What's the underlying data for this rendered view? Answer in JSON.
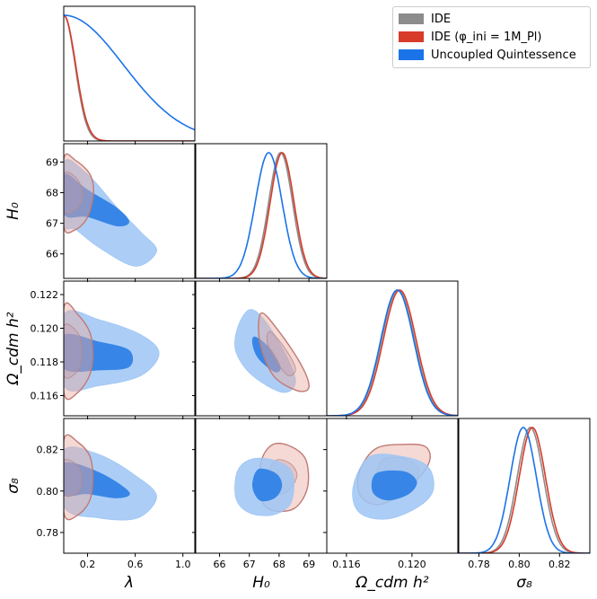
{
  "colors": {
    "ide": "#8c8c8c",
    "ide_phi": "#d93b2b",
    "uncoupled": "#1a73e8",
    "uncoupled_light": "#9ec5f5",
    "uncoupled_dark": "#2a7ee6",
    "ide_light": "#e8aaa0"
  },
  "legend": {
    "items": [
      {
        "label": "IDE",
        "color_key": "ide"
      },
      {
        "label": "IDE (φ_ini = 1M_Pl)",
        "color_key": "ide_phi"
      },
      {
        "label": "Uncoupled Quintessence",
        "color_key": "uncoupled"
      }
    ]
  },
  "chart_data": {
    "type": "corner",
    "parameters": [
      {
        "name": "lambda",
        "label": "λ",
        "range": [
          0,
          1.1
        ],
        "ticks": [
          0.2,
          0.6,
          1.0
        ],
        "tick_labels": [
          "0.2",
          "0.6",
          "1.0"
        ]
      },
      {
        "name": "H0",
        "label": "H₀",
        "range": [
          65.2,
          69.6
        ],
        "ticks": [
          66,
          67,
          68,
          69
        ],
        "tick_labels": [
          "66",
          "67",
          "68",
          "69"
        ]
      },
      {
        "name": "omega_cdm_h2",
        "label": "Ω_cdm h²",
        "range": [
          0.1148,
          0.1228
        ],
        "ticks": [
          0.116,
          0.118,
          0.12,
          0.122
        ],
        "tick_labels": [
          "0.116",
          "0.118",
          "0.120",
          "0.122"
        ],
        "x_tick_labels": [
          "0.116",
          "0.120"
        ],
        "x_ticks": [
          0.116,
          0.12
        ]
      },
      {
        "name": "sigma8",
        "label": "σ₈",
        "range": [
          0.77,
          0.835
        ],
        "ticks": [
          0.78,
          0.8,
          0.82
        ],
        "tick_labels": [
          "0.78",
          "0.80",
          "0.82"
        ]
      }
    ],
    "marginals": {
      "lambda": {
        "ide": {
          "type": "halfgauss",
          "sigma": 0.095
        },
        "ide_phi": {
          "type": "halfgauss",
          "sigma": 0.1
        },
        "uncoupled": {
          "type": "halfgauss",
          "sigma": 0.5
        }
      },
      "H0": {
        "ide": {
          "mean": 68.05,
          "sigma": 0.4
        },
        "ide_phi": {
          "mean": 68.1,
          "sigma": 0.4
        },
        "uncoupled": {
          "mean": 67.65,
          "sigma": 0.45
        }
      },
      "omega_cdm_h2": {
        "ide": {
          "mean": 0.11915,
          "sigma": 0.001
        },
        "ide_phi": {
          "mean": 0.11925,
          "sigma": 0.001
        },
        "uncoupled": {
          "mean": 0.1191,
          "sigma": 0.001
        }
      },
      "sigma8": {
        "ide": {
          "mean": 0.8055,
          "sigma": 0.0065
        },
        "ide_phi": {
          "mean": 0.8065,
          "sigma": 0.0065
        },
        "uncoupled": {
          "mean": 0.802,
          "sigma": 0.0065
        }
      }
    },
    "contours": [
      {
        "row": 1,
        "col": 0,
        "series": "uncoupled",
        "outer": [
          [
            0,
            69
          ],
          [
            0.2,
            68.6
          ],
          [
            0.45,
            67.5
          ],
          [
            0.65,
            66.7
          ],
          [
            0.78,
            66.1
          ],
          [
            0.6,
            65.6
          ],
          [
            0.3,
            66.2
          ],
          [
            0.1,
            66.8
          ],
          [
            0,
            67
          ]
        ],
        "inner": [
          [
            0,
            68.6
          ],
          [
            0.2,
            68.1
          ],
          [
            0.45,
            67.5
          ],
          [
            0.55,
            67.05
          ],
          [
            0.45,
            66.9
          ],
          [
            0.2,
            67.2
          ],
          [
            0,
            67.3
          ]
        ]
      },
      {
        "row": 1,
        "col": 0,
        "series": "ide",
        "outer": [
          [
            0,
            69.1
          ],
          [
            0.1,
            69.05
          ],
          [
            0.22,
            68.6
          ],
          [
            0.25,
            68
          ],
          [
            0.2,
            67.2
          ],
          [
            0.1,
            66.8
          ],
          [
            0,
            66.9
          ]
        ],
        "inner": [
          [
            0,
            68.6
          ],
          [
            0.1,
            68.5
          ],
          [
            0.16,
            68
          ],
          [
            0.12,
            67.5
          ],
          [
            0,
            67.4
          ]
        ]
      },
      {
        "row": 2,
        "col": 0,
        "series": "uncoupled",
        "outer": [
          [
            0,
            0.1208
          ],
          [
            0.3,
            0.1205
          ],
          [
            0.65,
            0.1196
          ],
          [
            0.8,
            0.1185
          ],
          [
            0.65,
            0.1172
          ],
          [
            0.3,
            0.1166
          ],
          [
            0,
            0.1166
          ]
        ],
        "inner": [
          [
            0,
            0.1196
          ],
          [
            0.3,
            0.1192
          ],
          [
            0.55,
            0.1187
          ],
          [
            0.55,
            0.1177
          ],
          [
            0.3,
            0.1175
          ],
          [
            0,
            0.1176
          ]
        ]
      },
      {
        "row": 2,
        "col": 0,
        "series": "ide",
        "outer": [
          [
            0,
            0.1212
          ],
          [
            0.12,
            0.1208
          ],
          [
            0.23,
            0.1195
          ],
          [
            0.23,
            0.1175
          ],
          [
            0.12,
            0.1162
          ],
          [
            0,
            0.1162
          ]
        ],
        "inner": [
          [
            0,
            0.1201
          ],
          [
            0.12,
            0.1197
          ],
          [
            0.15,
            0.1186
          ],
          [
            0.12,
            0.1175
          ],
          [
            0,
            0.1172
          ]
        ]
      },
      {
        "row": 3,
        "col": 0,
        "series": "uncoupled",
        "outer": [
          [
            0,
            0.8195
          ],
          [
            0.3,
            0.8175
          ],
          [
            0.6,
            0.8075
          ],
          [
            0.78,
            0.7975
          ],
          [
            0.62,
            0.787
          ],
          [
            0.3,
            0.787
          ],
          [
            0,
            0.7925
          ]
        ],
        "inner": [
          [
            0,
            0.8135
          ],
          [
            0.3,
            0.809
          ],
          [
            0.55,
            0.7995
          ],
          [
            0.45,
            0.7965
          ],
          [
            0.2,
            0.7985
          ],
          [
            0,
            0.7985
          ]
        ]
      },
      {
        "row": 3,
        "col": 0,
        "series": "ide",
        "outer": [
          [
            0,
            0.8245
          ],
          [
            0.12,
            0.8235
          ],
          [
            0.23,
            0.815
          ],
          [
            0.23,
            0.7975
          ],
          [
            0.12,
            0.7885
          ],
          [
            0,
            0.7895
          ]
        ],
        "inner": [
          [
            0,
            0.8145
          ],
          [
            0.12,
            0.812
          ],
          [
            0.15,
            0.8055
          ],
          [
            0.12,
            0.7995
          ],
          [
            0,
            0.7985
          ]
        ]
      },
      {
        "row": 2,
        "col": 1,
        "series": "uncoupled",
        "outer": [
          [
            67,
            0.1211
          ],
          [
            67.5,
            0.1205
          ],
          [
            68.2,
            0.1185
          ],
          [
            68.55,
            0.1168
          ],
          [
            68.1,
            0.1162
          ],
          [
            67.1,
            0.1172
          ],
          [
            66.55,
            0.1186
          ],
          [
            66.6,
            0.12
          ]
        ],
        "inner": [
          [
            67.2,
            0.1195
          ],
          [
            67.7,
            0.1188
          ],
          [
            68.05,
            0.1177
          ],
          [
            67.85,
            0.1174
          ],
          [
            67.3,
            0.1182
          ],
          [
            67.1,
            0.1191
          ]
        ]
      },
      {
        "row": 2,
        "col": 1,
        "series": "ide",
        "outer": [
          [
            67.4,
            0.1209
          ],
          [
            68.0,
            0.1198
          ],
          [
            68.75,
            0.1178
          ],
          [
            69.0,
            0.1165
          ],
          [
            68.6,
            0.1163
          ],
          [
            67.8,
            0.1172
          ],
          [
            67.35,
            0.1192
          ]
        ],
        "inner": [
          [
            67.7,
            0.1198
          ],
          [
            68.2,
            0.1188
          ],
          [
            68.55,
            0.1176
          ],
          [
            68.3,
            0.1172
          ],
          [
            67.85,
            0.1182
          ],
          [
            67.6,
            0.1192
          ]
        ]
      },
      {
        "row": 3,
        "col": 1,
        "series": "ide",
        "outer": [
          [
            67.8,
            0.8225
          ],
          [
            68.4,
            0.8215
          ],
          [
            68.9,
            0.815
          ],
          [
            68.95,
            0.8015
          ],
          [
            68.5,
            0.7915
          ],
          [
            67.7,
            0.791
          ],
          [
            67.35,
            0.7985
          ],
          [
            67.4,
            0.8145
          ]
        ],
        "inner": [
          [
            67.85,
            0.8145
          ],
          [
            68.35,
            0.8135
          ],
          [
            68.6,
            0.8075
          ],
          [
            68.3,
            0.8
          ],
          [
            67.85,
            0.7985
          ],
          [
            67.6,
            0.8045
          ]
        ]
      },
      {
        "row": 3,
        "col": 1,
        "series": "uncoupled",
        "outer": [
          [
            67.1,
            0.8155
          ],
          [
            67.9,
            0.8145
          ],
          [
            68.45,
            0.8085
          ],
          [
            68.4,
            0.7945
          ],
          [
            67.8,
            0.7885
          ],
          [
            67.0,
            0.7895
          ],
          [
            66.55,
            0.7965
          ],
          [
            66.6,
            0.8095
          ]
        ],
        "inner": [
          [
            67.3,
            0.8105
          ],
          [
            67.9,
            0.8085
          ],
          [
            68.1,
            0.8025
          ],
          [
            67.85,
            0.7965
          ],
          [
            67.35,
            0.7955
          ],
          [
            67.1,
            0.8025
          ]
        ]
      },
      {
        "row": 3,
        "col": 2,
        "series": "ide",
        "outer": [
          [
            0.1178,
            0.8205
          ],
          [
            0.1196,
            0.8225
          ],
          [
            0.1208,
            0.8215
          ],
          [
            0.1211,
            0.8155
          ],
          [
            0.1205,
            0.807
          ],
          [
            0.1192,
            0.7975
          ],
          [
            0.1178,
            0.7935
          ],
          [
            0.1168,
            0.7985
          ],
          [
            0.1168,
            0.8095
          ]
        ],
        "inner": [
          [
            0.1183,
            0.8155
          ],
          [
            0.1196,
            0.8155
          ],
          [
            0.1204,
            0.8105
          ],
          [
            0.1201,
            0.8035
          ],
          [
            0.119,
            0.7985
          ],
          [
            0.1181,
            0.7995
          ],
          [
            0.1178,
            0.8075
          ]
        ]
      },
      {
        "row": 3,
        "col": 2,
        "series": "uncoupled",
        "outer": [
          [
            0.1174,
            0.8165
          ],
          [
            0.1195,
            0.8165
          ],
          [
            0.121,
            0.8115
          ],
          [
            0.1213,
            0.8005
          ],
          [
            0.1204,
            0.7925
          ],
          [
            0.1185,
            0.7865
          ],
          [
            0.1168,
            0.7895
          ],
          [
            0.1164,
            0.8015
          ]
        ],
        "inner": [
          [
            0.1178,
            0.8085
          ],
          [
            0.1195,
            0.8095
          ],
          [
            0.1203,
            0.8045
          ],
          [
            0.1198,
            0.7985
          ],
          [
            0.1185,
            0.7955
          ],
          [
            0.1176,
            0.7995
          ]
        ]
      }
    ]
  }
}
